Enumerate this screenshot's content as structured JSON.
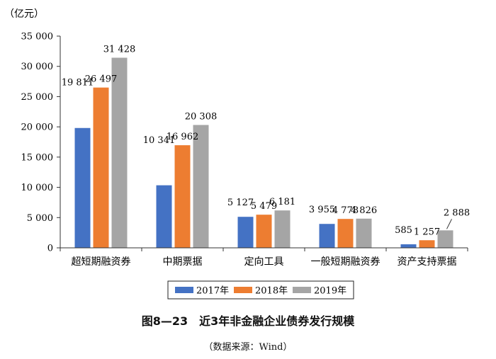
{
  "chart_data": {
    "type": "bar",
    "unit_label": "（亿元）",
    "title": "图8—23　近3年非金融企业债券发行规模",
    "source": "（数据来源：Wind）",
    "categories": [
      "超短期融资券",
      "中期票据",
      "定向工具",
      "一般短期融资券",
      "资产支持票据"
    ],
    "series": [
      {
        "name": "2017年",
        "color": "#4472c4",
        "values": [
          19811,
          10341,
          5127,
          3955,
          585
        ],
        "labels": [
          "19 811",
          "10 341",
          "5 127",
          "3 955",
          "585"
        ]
      },
      {
        "name": "2018年",
        "color": "#ed7d31",
        "values": [
          26497,
          16962,
          5479,
          4778,
          1257
        ],
        "labels": [
          "26 497",
          "16 962",
          "5 479",
          "4 778",
          "1 257"
        ]
      },
      {
        "name": "2019年",
        "color": "#a5a5a5",
        "values": [
          31428,
          20308,
          6181,
          4826,
          2888
        ],
        "labels": [
          "31 428",
          "20 308",
          "6 181",
          "4 826",
          "2 888"
        ]
      }
    ],
    "ylim": [
      0,
      35000
    ],
    "yticks": [
      0,
      5000,
      10000,
      15000,
      20000,
      25000,
      30000,
      35000
    ],
    "ytick_labels": [
      "0",
      "5 000",
      "10 000",
      "15 000",
      "20 000",
      "25 000",
      "30 000",
      "35 000"
    ],
    "grid": false,
    "legend_position": "bottom"
  }
}
